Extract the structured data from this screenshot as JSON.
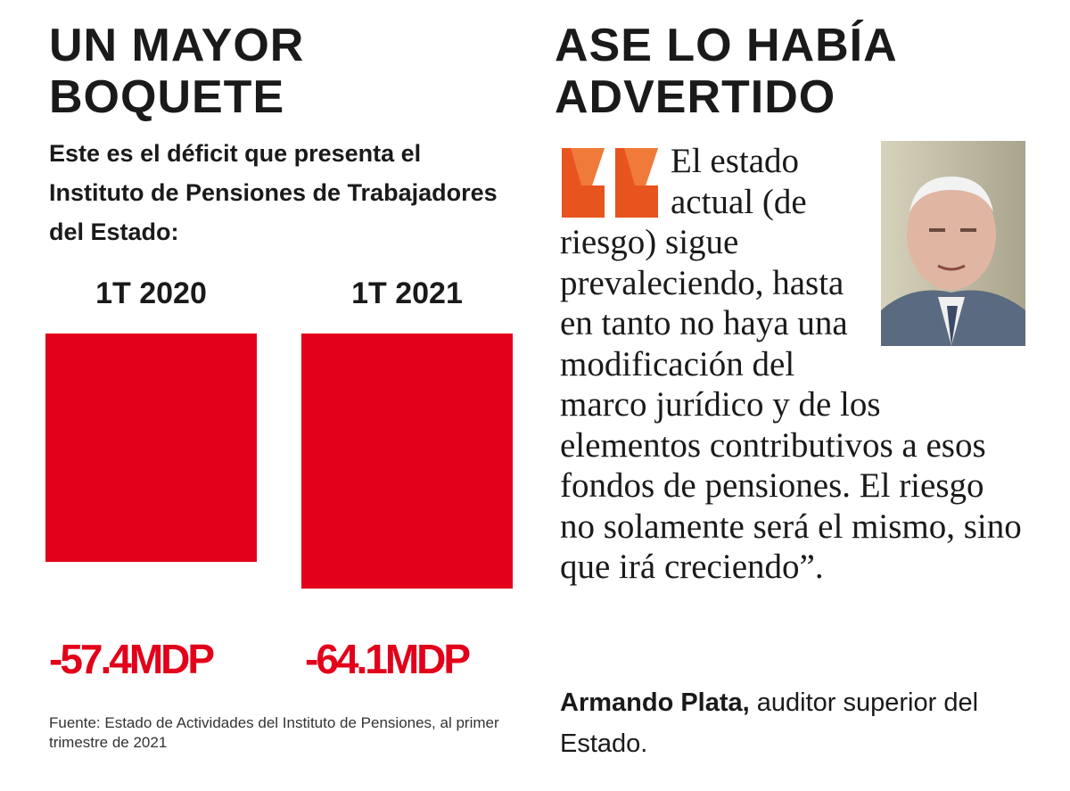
{
  "chart_data": {
    "type": "bar",
    "title": "UN MAYOR BOQUETE",
    "subtitle": "Este es el déficit que presenta el Instituto de Pensiones de Trabajadores del Estado:",
    "categories": [
      "1T 2020",
      "1T 2021"
    ],
    "values": [
      -57.4,
      -64.1
    ],
    "value_labels": [
      "-57.4MDP",
      "-64.1MDP"
    ],
    "color": "#e2001a",
    "source": "Fuente: Estado de Actividades del Instituto de Pensiones, al primer trimestre de 2021"
  },
  "quote_section": {
    "title": "ASE LO HABÍA ADVERTIDO",
    "quote": "El estado actual (de riesgo) sigue prevaleciendo, hasta en tanto no haya una modificación del marco jurídico y de los elementos contributivos a esos fondos de pensiones. El riesgo no solamente será el mismo, sino que irá creciendo”.",
    "author": "Armando Plata,",
    "author_role": "auditor superior del Estado."
  }
}
